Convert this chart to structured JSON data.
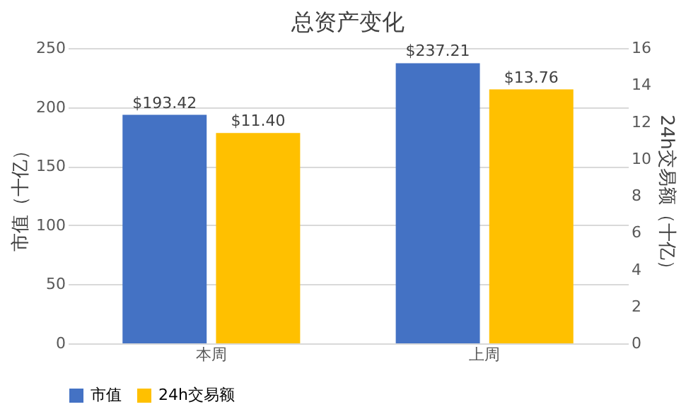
{
  "chart_data": {
    "type": "bar",
    "title": "总资产变化",
    "categories": [
      "本周",
      "上周"
    ],
    "series": [
      {
        "name": "市值",
        "color": "#4472c4",
        "values": [
          193.42,
          237.21
        ],
        "value_labels": [
          "$193.42",
          "$237.21"
        ]
      },
      {
        "name": "24h交易额",
        "color": "#ffc000",
        "values": [
          11.4,
          13.76
        ],
        "value_labels": [
          "$11.40",
          "$13.76"
        ],
        "axis": "y2"
      }
    ],
    "ylabel": "市值（十亿）",
    "y2label": "24h交易额（十亿）",
    "ylim": [
      0,
      250
    ],
    "yticks": [
      0,
      50,
      100,
      150,
      200,
      250
    ],
    "y2lim": [
      0,
      16
    ],
    "y2ticks": [
      0,
      2,
      4,
      6,
      8,
      10,
      12,
      14,
      16
    ],
    "grid": "y",
    "legend": "bottom"
  }
}
